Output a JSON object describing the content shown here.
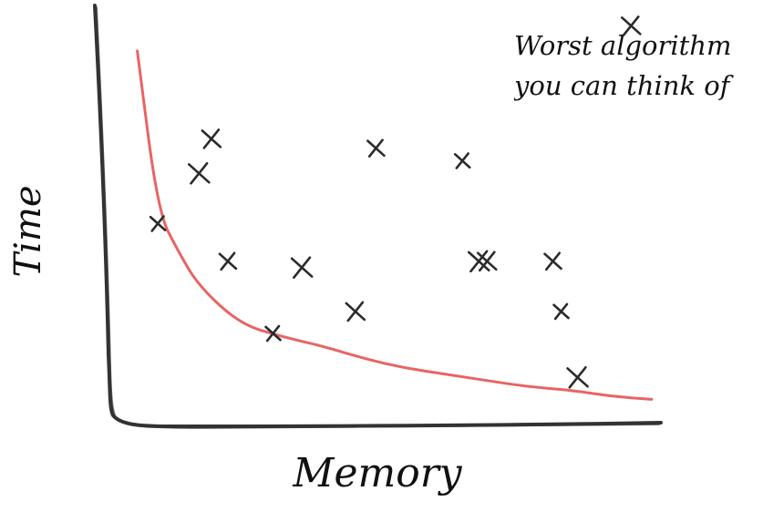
{
  "chart_data": {
    "type": "scatter",
    "title": "",
    "xlabel": "Memory",
    "ylabel": "Time",
    "annotation": "Worst algorithm you can think of",
    "grid": false,
    "legend": "none",
    "colors": {
      "axes": "#333333",
      "points": "#2b2b2b",
      "frontier": "#e86464",
      "text": "#111111"
    },
    "series": [
      {
        "type": "scatter",
        "x": [
          1.0,
          2.0,
          2.3,
          2.7,
          3.8,
          4.5,
          5.8,
          6.3,
          8.4,
          8.8,
          9.0,
          10.6,
          10.8,
          11.2,
          12.5
        ],
        "y": [
          6.4,
          8.0,
          9.1,
          5.2,
          2.9,
          5.0,
          3.6,
          8.8,
          8.4,
          5.2,
          5.2,
          5.2,
          3.6,
          1.5,
          12.7
        ]
      },
      {
        "type": "line",
        "x": [
          0.5,
          1.0,
          1.5,
          2.0,
          3.0,
          4.0,
          5.0,
          6.0,
          7.0,
          8.0,
          9.0,
          10.0,
          11.0,
          12.0,
          13.0
        ],
        "y": [
          11.9,
          6.8,
          5.5,
          4.4,
          3.2,
          2.8,
          2.5,
          2.1,
          1.8,
          1.6,
          1.4,
          1.2,
          1.1,
          0.9,
          0.8
        ]
      }
    ]
  }
}
